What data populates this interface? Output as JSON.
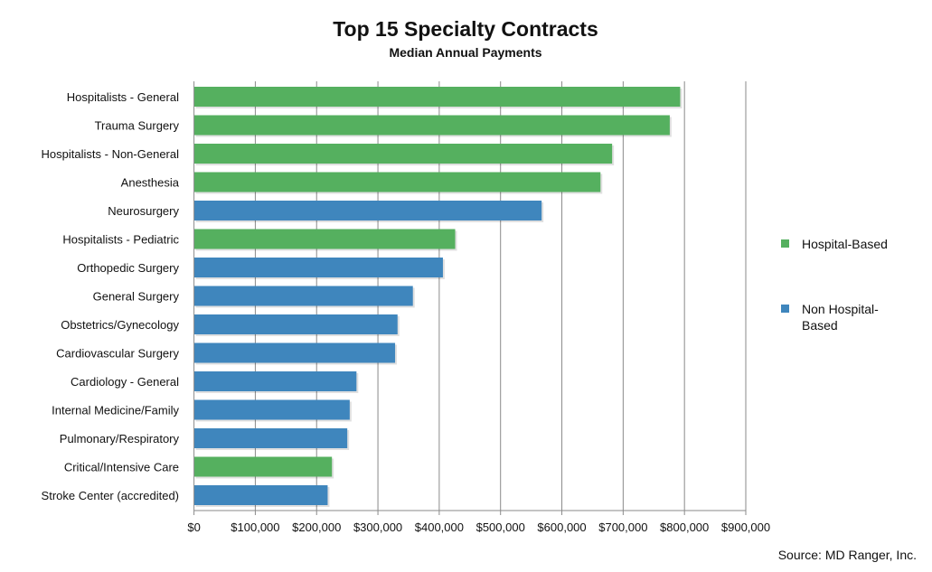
{
  "chart_data": {
    "type": "bar",
    "orientation": "horizontal",
    "title": "Top 15 Specialty Contracts",
    "subtitle": "Median Annual Payments",
    "source": "Source: MD Ranger, Inc.",
    "xlim": [
      0,
      900000
    ],
    "xticks": [
      0,
      100000,
      200000,
      300000,
      400000,
      500000,
      600000,
      700000,
      800000,
      900000
    ],
    "xtick_labels": [
      "$0",
      "$100,000",
      "$200,000",
      "$300,000",
      "$400,000",
      "$500,000",
      "$600,000",
      "$700,000",
      "$800,000",
      "$900,000"
    ],
    "grid": "vertical",
    "legend_placement": "right",
    "legend": [
      {
        "key": "hospital",
        "label_lines": [
          "Hospital-Based"
        ],
        "color": "#55b05f"
      },
      {
        "key": "non_hospital",
        "label_lines": [
          "Non Hospital-",
          "Based"
        ],
        "color": "#3f86bd"
      }
    ],
    "categories": [
      "Hospitalists - General",
      "Trauma Surgery",
      "Hospitalists - Non-General",
      "Anesthesia",
      "Neurosurgery",
      "Hospitalists - Pediatric",
      "Orthopedic Surgery",
      "General Surgery",
      "Obstetrics/Gynecology",
      "Cardiovascular Surgery",
      "Cardiology - General",
      "Internal Medicine/Family",
      "Pulmonary/Respiratory",
      "Critical/Intensive Care",
      "Stroke Center (accredited)"
    ],
    "values": [
      793000,
      776000,
      682000,
      663000,
      567000,
      426000,
      406000,
      357000,
      332000,
      328000,
      265000,
      254000,
      250000,
      225000,
      218000
    ],
    "groups": [
      "hospital",
      "hospital",
      "hospital",
      "hospital",
      "non_hospital",
      "hospital",
      "non_hospital",
      "non_hospital",
      "non_hospital",
      "non_hospital",
      "non_hospital",
      "non_hospital",
      "non_hospital",
      "hospital",
      "non_hospital"
    ]
  }
}
